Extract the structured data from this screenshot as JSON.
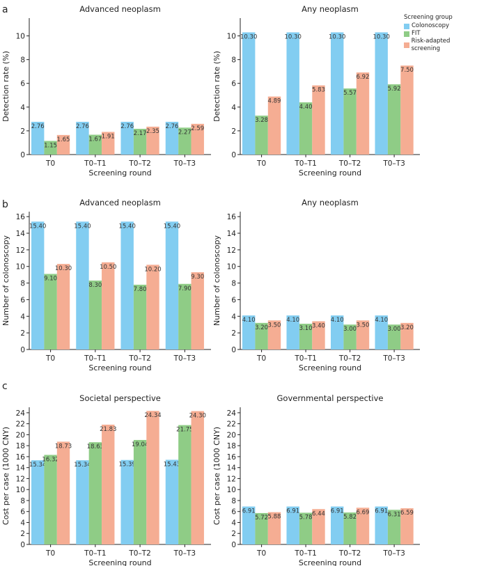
{
  "colors": {
    "colonoscopy": "#82cdf1",
    "fit": "#8fcc86",
    "risk": "#f5ad93",
    "axis": "#222222",
    "label_text": "#333333"
  },
  "legend": {
    "title": "Screening group",
    "entries": [
      "Colonoscopy",
      "FIT",
      "Risk-adapted screening"
    ]
  },
  "panel_letters": [
    "a",
    "b",
    "c"
  ],
  "chart_data": [
    {
      "type": "bar",
      "panel": "a",
      "title": "Advanced neoplasm",
      "xlabel": "Screening round",
      "ylabel": "Detection rate (%)",
      "categories": [
        "T0",
        "T0–T1",
        "T0–T2",
        "T0–T3"
      ],
      "ylim": [
        0,
        11.5
      ],
      "yticks": [
        0,
        2,
        4,
        6,
        8,
        10
      ],
      "ytick_labels": [
        "0",
        "2",
        "4",
        "6",
        "8",
        "10"
      ],
      "series": [
        {
          "name": "Colonoscopy",
          "values": [
            2.76,
            2.76,
            2.76,
            2.76
          ],
          "labels": [
            "2.76",
            "2.76",
            "2.76",
            "2.76"
          ]
        },
        {
          "name": "FIT",
          "values": [
            1.15,
            1.67,
            2.17,
            2.27
          ],
          "labels": [
            "1.15",
            "1.67",
            "2.17",
            "2.27"
          ]
        },
        {
          "name": "Risk-adapted screening",
          "values": [
            1.65,
            1.91,
            2.35,
            2.59
          ],
          "labels": [
            "1.65",
            "1.91",
            "2.35",
            "2.59"
          ]
        }
      ]
    },
    {
      "type": "bar",
      "panel": "a",
      "title": "Any neoplasm",
      "xlabel": "Screening round",
      "ylabel": "Detection rate (%)",
      "categories": [
        "T0",
        "T0–T1",
        "T0–T2",
        "T0–T3"
      ],
      "ylim": [
        0,
        11.5
      ],
      "yticks": [
        0,
        2,
        4,
        6,
        8,
        10
      ],
      "ytick_labels": [
        "0",
        "2",
        "4",
        "6",
        "8",
        "10"
      ],
      "series": [
        {
          "name": "Colonoscopy",
          "values": [
            10.3,
            10.3,
            10.3,
            10.3
          ],
          "labels": [
            "10.30",
            "10.30",
            "10.30",
            "10.30"
          ]
        },
        {
          "name": "FIT",
          "values": [
            3.28,
            4.4,
            5.57,
            5.92
          ],
          "labels": [
            "3.28",
            "4.40",
            "5.57",
            "5.92"
          ]
        },
        {
          "name": "Risk-adapted screening",
          "values": [
            4.89,
            5.83,
            6.92,
            7.5
          ],
          "labels": [
            "4.89",
            "5.83",
            "6.92",
            "7.50"
          ]
        }
      ]
    },
    {
      "type": "bar",
      "panel": "b",
      "title": "Advanced neoplasm",
      "xlabel": "Screening round",
      "ylabel": "Number of colonoscopy",
      "categories": [
        "T0",
        "T0–T1",
        "T0–T2",
        "T0–T3"
      ],
      "ylim": [
        0,
        16.6
      ],
      "yticks": [
        0,
        2,
        4,
        6,
        8,
        10,
        12,
        14,
        16
      ],
      "ytick_labels": [
        "0",
        "2",
        "4",
        "6",
        "8",
        "10",
        "12",
        "14",
        "16"
      ],
      "series": [
        {
          "name": "Colonoscopy",
          "values": [
            15.4,
            15.4,
            15.4,
            15.4
          ],
          "labels": [
            "15.40",
            "15.40",
            "15.40",
            "15.40"
          ]
        },
        {
          "name": "FIT",
          "values": [
            9.1,
            8.3,
            7.8,
            7.9
          ],
          "labels": [
            "9.10",
            "8.30",
            "7.80",
            "7.90"
          ]
        },
        {
          "name": "Risk-adapted screening",
          "values": [
            10.3,
            10.5,
            10.2,
            9.3
          ],
          "labels": [
            "10.30",
            "10.50",
            "10.20",
            "9.30"
          ]
        }
      ]
    },
    {
      "type": "bar",
      "panel": "b",
      "title": "Any neoplasm",
      "xlabel": "Screening round",
      "ylabel": "Number of colonoscopy",
      "categories": [
        "T0",
        "T0–T1",
        "T0–T2",
        "T0–T3"
      ],
      "ylim": [
        0,
        16.6
      ],
      "yticks": [
        0,
        2,
        4,
        6,
        8,
        10,
        12,
        14,
        16
      ],
      "ytick_labels": [
        "0",
        "2",
        "4",
        "6",
        "8",
        "10",
        "12",
        "14",
        "16"
      ],
      "series": [
        {
          "name": "Colonoscopy",
          "values": [
            4.1,
            4.1,
            4.1,
            4.1
          ],
          "labels": [
            "4.10",
            "4.10",
            "4.10",
            "4.10"
          ]
        },
        {
          "name": "FIT",
          "values": [
            3.2,
            3.1,
            3.0,
            3.0
          ],
          "labels": [
            "3.20",
            "3.10",
            "3.00",
            "3.00"
          ]
        },
        {
          "name": "Risk-adapted screening",
          "values": [
            3.5,
            3.4,
            3.5,
            3.2
          ],
          "labels": [
            "3.50",
            "3.40",
            "3.50",
            "3.20"
          ]
        }
      ]
    },
    {
      "type": "bar",
      "panel": "c",
      "title": "Societal perspective",
      "xlabel": "Screening round",
      "ylabel": "Cost per case (1000 CNY)",
      "categories": [
        "T0",
        "T0–T1",
        "T0–T2",
        "T0–T3"
      ],
      "ylim": [
        0,
        25
      ],
      "yticks": [
        0,
        2,
        4,
        6,
        8,
        10,
        12,
        14,
        16,
        18,
        20,
        22,
        24
      ],
      "ytick_labels": [
        "0",
        "2",
        "4",
        "6",
        "8",
        "10",
        "12",
        "14",
        "16",
        "18",
        "20",
        "22",
        "24"
      ],
      "series": [
        {
          "name": "Colonoscopy",
          "values": [
            15.34,
            15.34,
            15.39,
            15.43
          ],
          "labels": [
            "15.34",
            "15.34",
            "15.39",
            "15.43"
          ]
        },
        {
          "name": "FIT",
          "values": [
            16.32,
            18.63,
            19.04,
            21.75
          ],
          "labels": [
            "16.32",
            "18.63",
            "19.04",
            "21.75"
          ]
        },
        {
          "name": "Risk-adapted screening",
          "values": [
            18.73,
            21.83,
            24.34,
            24.3
          ],
          "labels": [
            "18.73",
            "21.83",
            "24.34",
            "24.30"
          ]
        }
      ]
    },
    {
      "type": "bar",
      "panel": "c",
      "title": "Governmental perspective",
      "xlabel": "Screening round",
      "ylabel": "Cost per case (1000 CNY)",
      "categories": [
        "T0",
        "T0–T1",
        "T0–T2",
        "T0–T3"
      ],
      "ylim": [
        0,
        25
      ],
      "yticks": [
        0,
        2,
        4,
        6,
        8,
        10,
        12,
        14,
        16,
        18,
        20,
        22,
        24
      ],
      "ytick_labels": [
        "0",
        "2",
        "4",
        "6",
        "8",
        "10",
        "12",
        "14",
        "16",
        "18",
        "20",
        "22",
        "24"
      ],
      "series": [
        {
          "name": "Colonoscopy",
          "values": [
            6.91,
            6.91,
            6.91,
            6.91
          ],
          "labels": [
            "6.91",
            "6.91",
            "6.91",
            "6.91"
          ]
        },
        {
          "name": "FIT",
          "values": [
            5.72,
            5.78,
            5.82,
            6.31
          ],
          "labels": [
            "5.72",
            "5.78",
            "5.82",
            "6.31"
          ]
        },
        {
          "name": "Risk-adapted screening",
          "values": [
            5.88,
            6.44,
            6.69,
            6.59
          ],
          "labels": [
            "5.88",
            "6.44",
            "6.69",
            "6.59"
          ]
        }
      ]
    }
  ]
}
